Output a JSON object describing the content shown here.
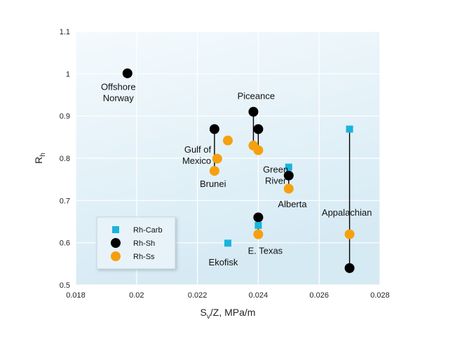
{
  "chart_data": {
    "type": "scatter",
    "xlabel_main": "S",
    "xlabel_sub": "v",
    "xlabel_rest": "/Z, MPa/m",
    "ylabel_main": "R",
    "ylabel_sub": "h",
    "xlim": [
      0.018,
      0.028
    ],
    "ylim": [
      0.5,
      1.1
    ],
    "x_ticks": [
      "0.018",
      "0.02",
      "0.022",
      "0.024",
      "0.026",
      "0.028"
    ],
    "y_ticks": [
      "0.5",
      "0.6",
      "0.7",
      "0.8",
      "0.9",
      "1",
      "1.1"
    ],
    "grid": true,
    "legend_position": "bottom-left",
    "colors": {
      "carb": "#19b4dc",
      "sh": "#000000",
      "ss": "#f5a00f",
      "plot_bg": "#e4f1f8"
    },
    "series": [
      {
        "name": "Rh-Carb",
        "marker": "square",
        "points": [
          [
            0.023,
            0.599
          ],
          [
            0.024,
            0.641
          ],
          [
            0.025,
            0.779
          ],
          [
            0.027,
            0.869
          ]
        ]
      },
      {
        "name": "Rh-Sh",
        "marker": "circle",
        "points": [
          [
            0.0197,
            1.001
          ],
          [
            0.02256,
            0.869
          ],
          [
            0.02384,
            0.91
          ],
          [
            0.024,
            0.869
          ],
          [
            0.024,
            0.66
          ],
          [
            0.025,
            0.759
          ],
          [
            0.027,
            0.54
          ]
        ]
      },
      {
        "name": "Rh-Ss",
        "marker": "circle",
        "points": [
          [
            0.02256,
            0.77
          ],
          [
            0.02265,
            0.799
          ],
          [
            0.023,
            0.842
          ],
          [
            0.02384,
            0.83
          ],
          [
            0.024,
            0.819
          ],
          [
            0.024,
            0.62
          ],
          [
            0.025,
            0.728
          ],
          [
            0.027,
            0.62
          ]
        ]
      }
    ],
    "connectors": [
      [
        [
          0.02256,
          0.869
        ],
        [
          0.02256,
          0.77
        ]
      ],
      [
        [
          0.02384,
          0.91
        ],
        [
          0.02384,
          0.83
        ]
      ],
      [
        [
          0.024,
          0.869
        ],
        [
          0.024,
          0.819
        ]
      ],
      [
        [
          0.025,
          0.759
        ],
        [
          0.025,
          0.728
        ]
      ],
      [
        [
          0.024,
          0.66
        ],
        [
          0.024,
          0.62
        ]
      ],
      [
        [
          0.027,
          0.869
        ],
        [
          0.027,
          0.54
        ]
      ]
    ],
    "annotations": [
      {
        "lines": [
          "Offshore",
          "Norway"
        ],
        "x": 0.0194,
        "y": 0.962,
        "anchor": "middle"
      },
      {
        "lines": [
          "Piceance"
        ],
        "x": 0.02393,
        "y": 0.94,
        "anchor": "middle"
      },
      {
        "lines": [
          "Gulf of",
          "Mexico"
        ],
        "x": 0.02245,
        "y": 0.813,
        "anchor": "end"
      },
      {
        "lines": [
          "Brunei"
        ],
        "x": 0.02251,
        "y": 0.732,
        "anchor": "middle"
      },
      {
        "lines": [
          "Green",
          "River"
        ],
        "x": 0.02457,
        "y": 0.766,
        "anchor": "middle"
      },
      {
        "lines": [
          "Alberta"
        ],
        "x": 0.02512,
        "y": 0.684,
        "anchor": "middle"
      },
      {
        "lines": [
          "Appalachian"
        ],
        "x": 0.02691,
        "y": 0.664,
        "anchor": "middle"
      },
      {
        "lines": [
          "E. Texas"
        ],
        "x": 0.02423,
        "y": 0.574,
        "anchor": "middle"
      },
      {
        "lines": [
          "Ekofisk"
        ],
        "x": 0.02285,
        "y": 0.546,
        "anchor": "middle"
      }
    ]
  }
}
